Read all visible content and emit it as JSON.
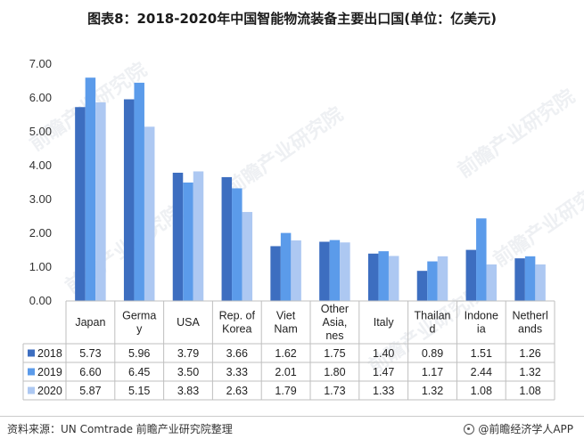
{
  "title": "图表8：2018-2020年中国智能物流装备主要出口国(单位：亿美元)",
  "footer": {
    "source": "资料来源：UN Comtrade 前瞻产业研究院整理",
    "brand": "@前瞻经济学人APP",
    "brand_icon": "qianzhan-logo-icon"
  },
  "watermark": "前瞻产业研究院",
  "colors": {
    "2018": "#3d6ec0",
    "2019": "#5b9bea",
    "2020": "#adc8f2"
  },
  "chart_data": {
    "type": "bar",
    "title": "图表8：2018-2020年中国智能物流装备主要出口国(单位：亿美元)",
    "categories": [
      "Japan",
      "Germany",
      "USA",
      "Rep. of Korea",
      "Viet Nam",
      "Other Asia, nes",
      "Italy",
      "Thailand",
      "Indonesia",
      "Netherlands"
    ],
    "category_lines": [
      [
        "Japan"
      ],
      [
        "Germa",
        "y"
      ],
      [
        "USA"
      ],
      [
        "Rep. of",
        "Korea"
      ],
      [
        "Viet",
        "Nam"
      ],
      [
        "Other",
        "Asia,",
        "nes"
      ],
      [
        "Italy"
      ],
      [
        "Thailan",
        "d"
      ],
      [
        "Indone",
        "ia"
      ],
      [
        "Netherl",
        "ands"
      ]
    ],
    "series": [
      {
        "name": "2018",
        "values": [
          5.73,
          5.96,
          3.79,
          3.66,
          1.62,
          1.75,
          1.4,
          0.89,
          1.51,
          1.26
        ],
        "labels": [
          "5.73",
          "5.96",
          "3.79",
          "3.66",
          "1.62",
          "1.75",
          "1.40",
          "0.89",
          "1.51",
          "1.26"
        ]
      },
      {
        "name": "2019",
        "values": [
          6.6,
          6.45,
          3.5,
          3.33,
          2.01,
          1.8,
          1.47,
          1.17,
          2.44,
          1.32
        ],
        "labels": [
          "6.60",
          "6.45",
          "3.50",
          "3.33",
          "2.01",
          "1.80",
          "1.47",
          "1.17",
          "2.44",
          "1.32"
        ]
      },
      {
        "name": "2020",
        "values": [
          5.87,
          5.15,
          3.83,
          2.63,
          1.79,
          1.73,
          1.33,
          1.32,
          1.08,
          1.08
        ],
        "labels": [
          "5.87",
          "5.15",
          "3.83",
          "2.63",
          "1.79",
          "1.73",
          "1.33",
          "1.32",
          "1.08",
          "1.08"
        ]
      }
    ],
    "ylim": [
      0,
      7
    ],
    "yticks": [
      0,
      1,
      2,
      3,
      4,
      5,
      6,
      7
    ],
    "ytick_labels": [
      "0.00",
      "1.00",
      "2.00",
      "3.00",
      "4.00",
      "5.00",
      "6.00",
      "7.00"
    ],
    "xlabel": "",
    "ylabel": "",
    "grid": false,
    "legend": "data-table-left",
    "data_table": true
  }
}
